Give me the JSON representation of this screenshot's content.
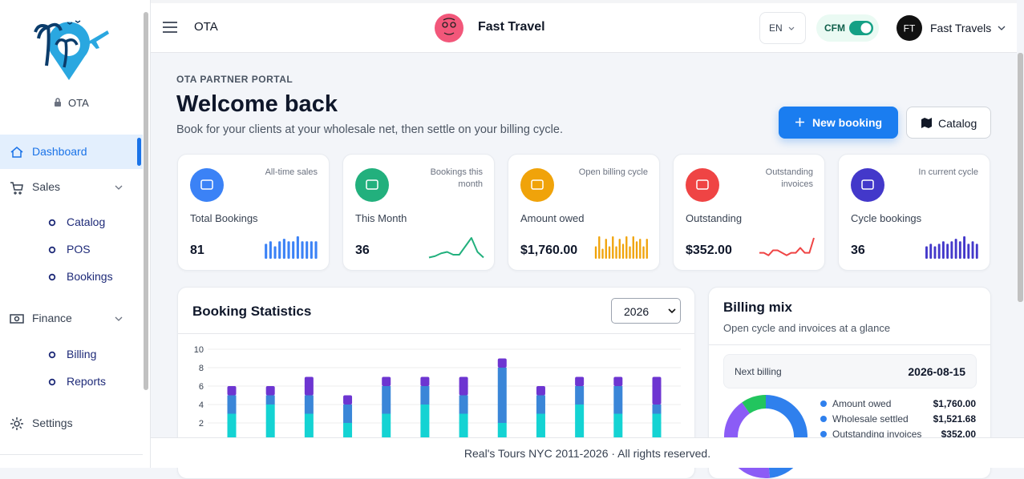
{
  "sidebar": {
    "brand": "OTA",
    "nav": [
      {
        "label": "Dashboard"
      },
      {
        "label": "Sales",
        "children": [
          "Catalog",
          "POS",
          "Bookings"
        ]
      },
      {
        "label": "Finance",
        "children": [
          "Billing",
          "Reports"
        ]
      },
      {
        "label": "Settings"
      }
    ]
  },
  "topbar": {
    "menu_title": "OTA",
    "app_name": "Fast Travel",
    "language": "EN",
    "toggle_label": "CFM",
    "user_initials": "FT",
    "user_name": "Fast Travels"
  },
  "header": {
    "eyebrow": "OTA PARTNER PORTAL",
    "title": "Welcome back",
    "subtitle": "Book for your clients at your wholesale net, then settle on your billing cycle.",
    "buttons": [
      "New booking",
      "Catalog"
    ]
  },
  "stats": [
    {
      "label": "Total Bookings",
      "note": "All-time sales",
      "value": "81",
      "color": "#3b82f6",
      "spark_type": "bar",
      "spark": [
        6,
        7,
        5,
        7,
        8,
        7,
        7,
        9,
        7,
        7,
        7,
        7
      ]
    },
    {
      "label": "This Month",
      "note": "Bookings this month",
      "value": "36",
      "color": "#22b07d",
      "spark_type": "line",
      "spark": [
        1,
        1.5,
        2.5,
        3,
        2,
        2,
        5,
        8,
        3,
        1
      ]
    },
    {
      "label": "Amount owed",
      "note": "Open billing cycle",
      "value": "$1,760.00",
      "color": "#f0a30a",
      "spark_type": "bar",
      "spark": [
        5,
        9,
        4,
        8,
        5,
        9,
        5,
        8,
        6,
        9,
        5,
        9,
        7,
        8,
        5,
        8
      ]
    },
    {
      "label": "Outstanding",
      "note": "Outstanding invoices",
      "value": "$352.00",
      "color": "#ef4444",
      "spark_type": "line",
      "spark": [
        3,
        3,
        2,
        4,
        4,
        3,
        2,
        3,
        3,
        5,
        3,
        3,
        9
      ]
    },
    {
      "label": "Cycle bookings",
      "note": "In current cycle",
      "value": "36",
      "color": "#4338ca",
      "spark_type": "bar",
      "spark": [
        5,
        6,
        5,
        6,
        7,
        6,
        7,
        8,
        7,
        9,
        6,
        7,
        6
      ]
    }
  ],
  "chart_data": [
    {
      "type": "bar",
      "stacked": true,
      "title": "Booking Statistics",
      "year": "2026",
      "ylim": [
        0,
        10
      ],
      "yticks": [
        0,
        2,
        4,
        6,
        8,
        10
      ],
      "grid": true,
      "series": [
        {
          "color": "#14d3d3",
          "values": [
            3,
            4,
            3,
            2,
            3,
            4,
            3,
            2,
            3,
            4,
            3,
            3
          ]
        },
        {
          "color": "#3a86d8",
          "values": [
            2,
            1,
            2,
            2,
            3,
            2,
            2,
            6,
            2,
            2,
            3,
            1
          ]
        },
        {
          "color": "#6d35d1",
          "values": [
            1,
            1,
            2,
            1,
            1,
            1,
            2,
            1,
            1,
            1,
            1,
            3
          ]
        }
      ]
    },
    {
      "type": "pie",
      "donut": true,
      "title": "Billing mix",
      "subtitle": "Open cycle and invoices at a glance",
      "categories": [
        "Amount owed",
        "Wholesale settled",
        "Outstanding invoices"
      ],
      "values": [
        1760,
        1521.68,
        352
      ],
      "value_labels": [
        "$1,760.00",
        "$1,521.68",
        "$352.00"
      ],
      "colors": [
        "#2f80ed",
        "#8b5cf6",
        "#22c55e"
      ],
      "legend_color": "#2f80ed"
    }
  ],
  "billing_mix": {
    "next_billing_label": "Next billing",
    "next_billing_date": "2026-08-15"
  },
  "footer": "Real's Tours NYC 2011-2026 · All rights reserved."
}
